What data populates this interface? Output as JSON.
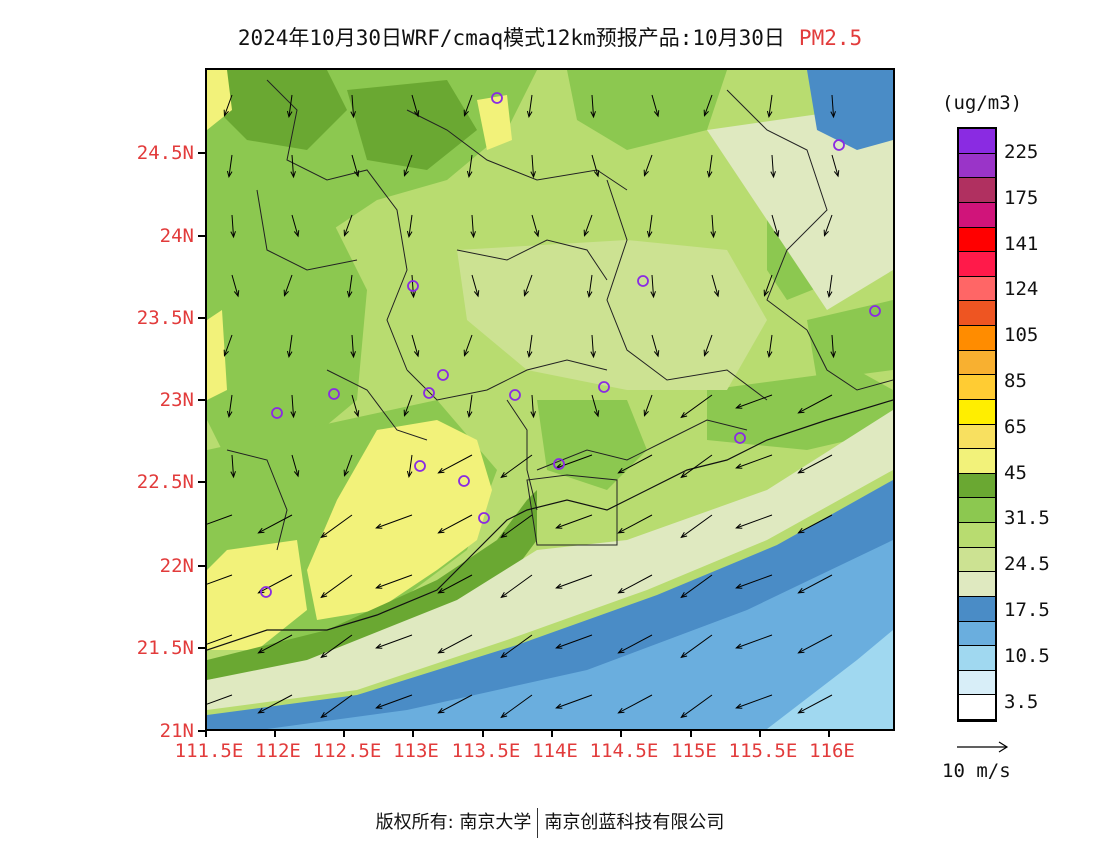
{
  "title": {
    "text": "2024年10月30日WRF/cmaq模式12km预报产品:10月30日",
    "pollutant": "PM2.5"
  },
  "axes": {
    "y_ticks": [
      "24.5N",
      "24N",
      "23.5N",
      "23N",
      "22.5N",
      "22N",
      "21.5N",
      "21N"
    ],
    "x_ticks": [
      "111.5E",
      "112E",
      "112.5E",
      "113E",
      "113.5E",
      "114E",
      "114.5E",
      "115E",
      "115.5E",
      "116E"
    ]
  },
  "colorbar": {
    "unit": "(ug/m3)",
    "labels": [
      "225",
      "175",
      "141",
      "124",
      "105",
      "85",
      "65",
      "45",
      "31.5",
      "24.5",
      "17.5",
      "10.5",
      "3.5"
    ],
    "colors_top_to_bottom": [
      "#8a2be2",
      "#9a34c8",
      "#b03060",
      "#d0147a",
      "#ff0000",
      "#ff1a4a",
      "#ff6666",
      "#ee5522",
      "#ff8c00",
      "#f8b030",
      "#ffcc33",
      "#ffee00",
      "#f8e060",
      "#f2f27a",
      "#6aa832",
      "#8cc850",
      "#b8dc70",
      "#cce292",
      "#dfe9c0",
      "#4a8cc6",
      "#6aaede",
      "#a0d8f0",
      "#d8eef8",
      "#ffffff"
    ]
  },
  "wind": {
    "reference_label": "10 m/s"
  },
  "footer": {
    "left": "版权所有: 南京大学",
    "right": "南京创蓝科技有限公司"
  },
  "colors": {
    "axis_label": "#e23b3b",
    "station_marker": "#8a2be2"
  }
}
